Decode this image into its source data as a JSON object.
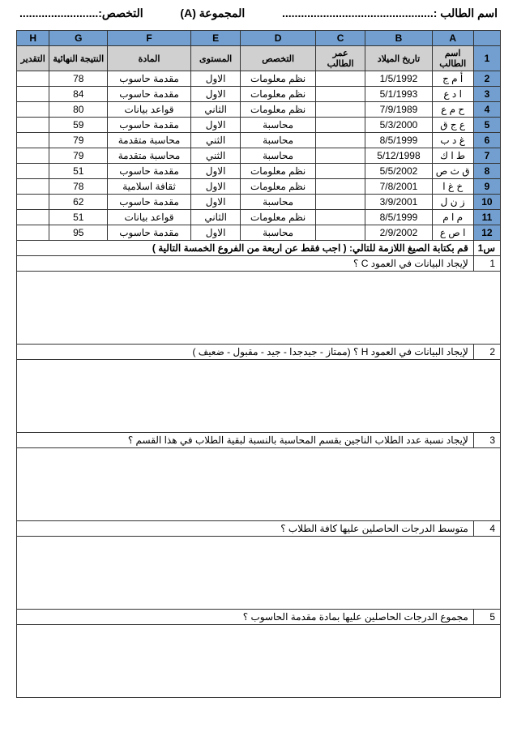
{
  "header": {
    "student_label": "اسم الطالب :",
    "student_dots": "................................................",
    "group_label": "المجموعة (A)",
    "major_label": "التخصص:",
    "major_dots": "........................."
  },
  "columns": {
    "rownum": "",
    "letters": [
      "A",
      "B",
      "C",
      "D",
      "E",
      "F",
      "G",
      "H"
    ],
    "headers": [
      "اسم الطالب",
      "تاريخ الميلاد",
      "عمر الطالب",
      "التخصص",
      "المستوى",
      "المادة",
      "النتيجة النهائية",
      "التقدير"
    ]
  },
  "rows": [
    {
      "n": "1"
    },
    {
      "n": "2",
      "a": "أ م ج",
      "b": "1/5/1992",
      "c": "",
      "d": "نظم معلومات",
      "e": "الاول",
      "f": "مقدمة حاسوب",
      "g": "78",
      "h": ""
    },
    {
      "n": "3",
      "a": "ا د ع",
      "b": "5/1/1993",
      "c": "",
      "d": "نظم معلومات",
      "e": "الاول",
      "f": "مقدمة حاسوب",
      "g": "84",
      "h": ""
    },
    {
      "n": "4",
      "a": "ح م ع",
      "b": "7/9/1989",
      "c": "",
      "d": "نظم معلومات",
      "e": "الثاني",
      "f": "قواعد بيانات",
      "g": "80",
      "h": ""
    },
    {
      "n": "5",
      "a": "ع ج ق",
      "b": "5/3/2000",
      "c": "",
      "d": "محاسبة",
      "e": "الاول",
      "f": "مقدمة حاسوب",
      "g": "59",
      "h": ""
    },
    {
      "n": "6",
      "a": "غ د ب",
      "b": "8/5/1999",
      "c": "",
      "d": "محاسبة",
      "e": "الثني",
      "f": "محاسبة متقدمة",
      "g": "79",
      "h": ""
    },
    {
      "n": "7",
      "a": "ط ا ك",
      "b": "5/12/1998",
      "c": "",
      "d": "محاسبة",
      "e": "الثني",
      "f": "محاسبة متقدمة",
      "g": "79",
      "h": ""
    },
    {
      "n": "8",
      "a": "ق ث ص",
      "b": "5/5/2002",
      "c": "",
      "d": "نظم معلومات",
      "e": "الاول",
      "f": "مقدمة حاسوب",
      "g": "51",
      "h": ""
    },
    {
      "n": "9",
      "a": "خ غ ا",
      "b": "7/8/2001",
      "c": "",
      "d": "نظم معلومات",
      "e": "الاول",
      "f": "ثقافة اسلامية",
      "g": "78",
      "h": ""
    },
    {
      "n": "10",
      "a": "ز ن ل",
      "b": "3/9/2001",
      "c": "",
      "d": "محاسبة",
      "e": "الاول",
      "f": "مقدمة حاسوب",
      "g": "62",
      "h": ""
    },
    {
      "n": "11",
      "a": "م ا م",
      "b": "8/5/1999",
      "c": "",
      "d": "نظم معلومات",
      "e": "الثاني",
      "f": "قواعد بيانات",
      "g": "51",
      "h": ""
    },
    {
      "n": "12",
      "a": "ا ص ع",
      "b": "2/9/2002",
      "c": "",
      "d": "محاسبة",
      "e": "الاول",
      "f": "مقدمة حاسوب",
      "g": "95",
      "h": ""
    }
  ],
  "section": {
    "s1_label": "س1",
    "s1_text": "قم بكتابة الصيغ اللازمة للتالي:   ( اجب فقط عن اربعة من الفروع الخمسة التالية )"
  },
  "questions": [
    {
      "n": "1",
      "text": "لإيجاد البيانات في العمود C ؟"
    },
    {
      "n": "2",
      "text": "لإيجاد البيانات في العمود H ؟ (ممتاز - جيدجدا - جيد - مقبول - ضعيف )"
    },
    {
      "n": "3",
      "text": "لإيجاد نسبة عدد الطلاب الناجين بقسم المحاسبة بالنسبة لبقية الطلاب في هذا القسم ؟"
    },
    {
      "n": "4",
      "text": "متوسط الدرجات الحاصلين عليها كافة الطلاب ؟"
    },
    {
      "n": "5",
      "text": "مجموع الدرجات الحاصلين عليها بمادة مقدمة الحاسوب ؟"
    }
  ]
}
